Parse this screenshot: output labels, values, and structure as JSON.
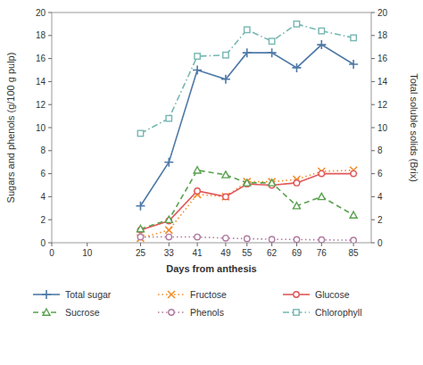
{
  "chart_data": {
    "type": "line",
    "x": [
      25,
      33,
      41,
      49,
      55,
      62,
      69,
      76,
      85
    ],
    "series": [
      {
        "name": "Total sugar",
        "color": "#4e79a7",
        "marker": "plus",
        "line_style": "solid",
        "values": [
          3.2,
          7.0,
          15.0,
          14.2,
          16.5,
          16.5,
          15.2,
          17.2,
          15.5
        ]
      },
      {
        "name": "Fructose",
        "color": "#f28e2b",
        "marker": "x",
        "line_style": "dotted",
        "values": [
          0.4,
          1.1,
          4.2,
          4.0,
          5.3,
          5.3,
          5.5,
          6.2,
          6.3
        ]
      },
      {
        "name": "Glucose",
        "color": "#e15759",
        "marker": "circle",
        "line_style": "solid",
        "values": [
          1.1,
          1.9,
          4.5,
          4.0,
          5.1,
          5.0,
          5.2,
          6.0,
          6.0
        ]
      },
      {
        "name": "Sucrose",
        "color": "#59a14f",
        "marker": "triangle",
        "line_style": "dashed",
        "values": [
          1.2,
          2.0,
          6.3,
          5.9,
          5.2,
          5.2,
          3.2,
          4.0,
          2.4
        ]
      },
      {
        "name": "Phenols",
        "color": "#b07aa1",
        "marker": "circle",
        "line_style": "dotted",
        "values": [
          0.5,
          0.5,
          0.5,
          0.4,
          0.35,
          0.3,
          0.28,
          0.25,
          0.22
        ]
      },
      {
        "name": "Chlorophyll",
        "color": "#76b7b2",
        "marker": "square",
        "line_style": "dashdot",
        "axis": "y2",
        "values": [
          9.5,
          10.8,
          16.2,
          16.3,
          18.5,
          17.5,
          19.0,
          18.4,
          17.8
        ]
      }
    ],
    "xlabel": "Days from anthesis",
    "ylabel": "Sugars and phenols (g/100 g pulp)",
    "y2label": "Total soluble solids (Brix)",
    "xlim": [
      0,
      90
    ],
    "xticks": [
      0,
      10,
      25,
      33,
      41,
      49,
      55,
      62,
      69,
      76,
      85
    ],
    "ylim": [
      0,
      20
    ],
    "yticks": [
      0,
      2,
      4,
      6,
      8,
      10,
      12,
      14,
      16,
      18,
      20
    ],
    "y2lim": [
      0,
      20
    ],
    "y2ticks": [
      0,
      2,
      4,
      6,
      8,
      10,
      12,
      14,
      16,
      18,
      20
    ],
    "grid": false,
    "legend": "bottom"
  }
}
